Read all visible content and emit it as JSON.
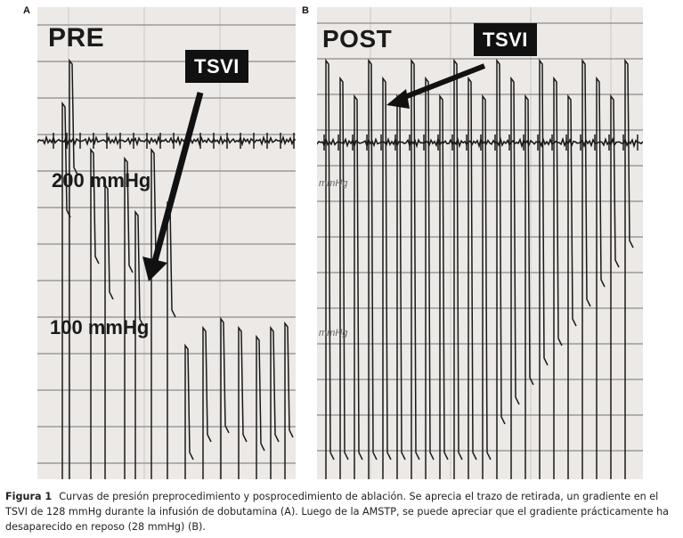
{
  "panels": {
    "a": {
      "letter": "A",
      "phase_label": "PRE",
      "marker_label": "TSVI",
      "pressure_labels": [
        "200 mmHg",
        "100 mmHg"
      ]
    },
    "b": {
      "letter": "B",
      "phase_label": "POST",
      "marker_label": "TSVI",
      "pressure_labels": [
        "mmHg",
        "mmHg"
      ]
    }
  },
  "caption": {
    "figure_label": "Figura 1",
    "text": "Curvas de presión preprocedimiento y posprocedimiento de ablación. Se aprecia el trazo de retirada, un gradiente en el TSVI de 128 mmHg durante la infusión de dobutamina (A). Luego de la AMSTP, se puede apreciar que el gradiente prácticamente ha desaparecido en reposo (28 mmHg) (B)."
  },
  "colors": {
    "paper": "#ece9e6",
    "grid": "#555555",
    "trace": "#1a1a1a",
    "label_box": "#111111"
  }
}
